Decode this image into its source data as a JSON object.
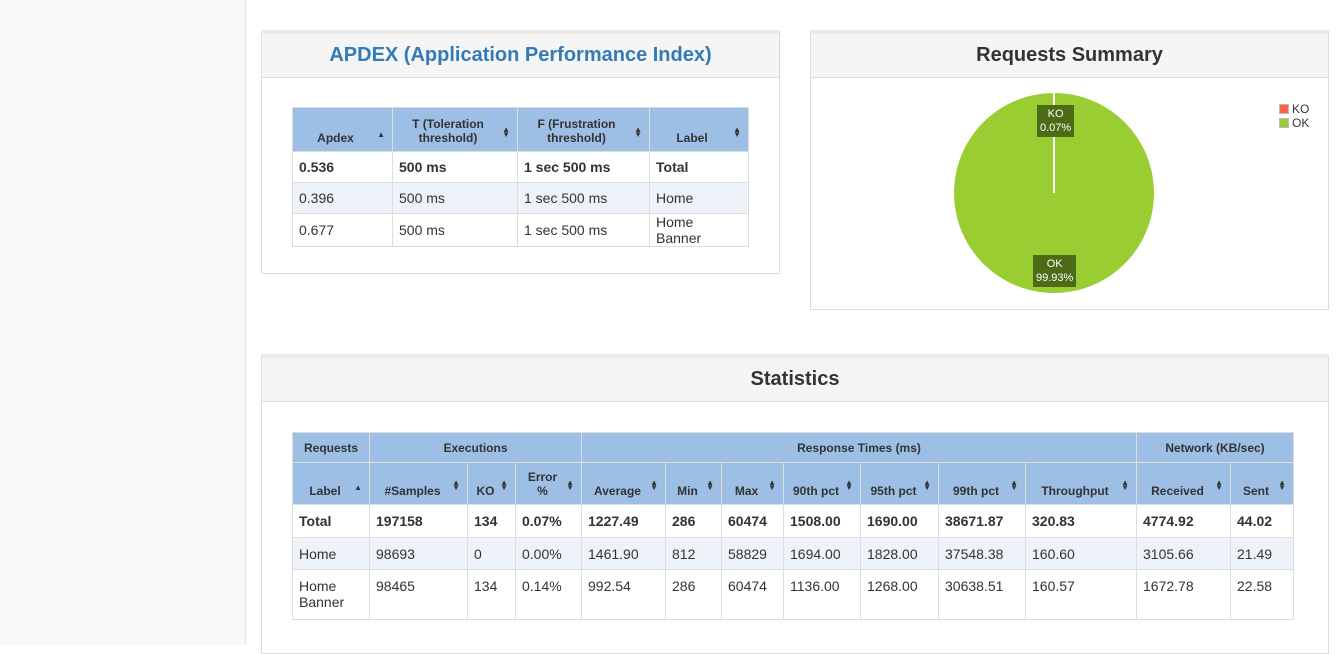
{
  "apdex": {
    "title": "APDEX (Application Performance Index)",
    "headers": [
      "Apdex",
      "T (Toleration threshold)",
      "F (Frustration threshold)",
      "Label"
    ],
    "rows": [
      [
        "0.536",
        "500 ms",
        "1 sec 500 ms",
        "Total"
      ],
      [
        "0.396",
        "500 ms",
        "1 sec 500 ms",
        "Home"
      ],
      [
        "0.677",
        "500 ms",
        "1 sec 500 ms",
        "Home Banner"
      ]
    ]
  },
  "summary": {
    "title": "Requests Summary",
    "legend": [
      {
        "label": "KO",
        "color": "#ff6347"
      },
      {
        "label": "OK",
        "color": "#9acd32"
      }
    ],
    "labels": {
      "ko": {
        "name": "KO",
        "value": "0.07%"
      },
      "ok": {
        "name": "OK",
        "value": "99.93%"
      }
    },
    "chart_data": {
      "type": "pie",
      "categories": [
        "KO",
        "OK"
      ],
      "values": [
        0.07,
        99.93
      ]
    }
  },
  "statistics": {
    "title": "Statistics",
    "groups": [
      "Requests",
      "Executions",
      "Response Times (ms)",
      "Network (KB/sec)"
    ],
    "columns": [
      "Label",
      "#Samples",
      "KO",
      "Error %",
      "Average",
      "Min",
      "Max",
      "90th pct",
      "95th pct",
      "99th pct",
      "Throughput",
      "Received",
      "Sent"
    ],
    "rows": [
      [
        "Total",
        "197158",
        "134",
        "0.07%",
        "1227.49",
        "286",
        "60474",
        "1508.00",
        "1690.00",
        "38671.87",
        "320.83",
        "4774.92",
        "44.02"
      ],
      [
        "Home",
        "98693",
        "0",
        "0.00%",
        "1461.90",
        "812",
        "58829",
        "1694.00",
        "1828.00",
        "37548.38",
        "160.60",
        "3105.66",
        "21.49"
      ],
      [
        "Home Banner",
        "98465",
        "134",
        "0.14%",
        "992.54",
        "286",
        "60474",
        "1136.00",
        "1268.00",
        "30638.51",
        "160.57",
        "1672.78",
        "22.58"
      ]
    ]
  }
}
